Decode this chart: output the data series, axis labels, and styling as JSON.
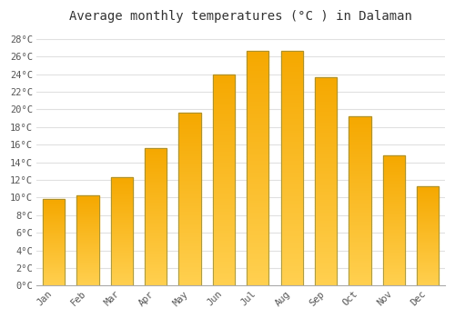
{
  "title": "Average monthly temperatures (°C ) in Dalaman",
  "months": [
    "Jan",
    "Feb",
    "Mar",
    "Apr",
    "May",
    "Jun",
    "Jul",
    "Aug",
    "Sep",
    "Oct",
    "Nov",
    "Dec"
  ],
  "temperatures": [
    9.8,
    10.3,
    12.3,
    15.6,
    19.6,
    24.0,
    26.7,
    26.6,
    23.7,
    19.2,
    14.8,
    11.3
  ],
  "bar_color_top": "#F5A800",
  "bar_color_bottom": "#FFD050",
  "bar_edge_color": "#888844",
  "ylim": [
    0,
    29
  ],
  "yticks": [
    0,
    2,
    4,
    6,
    8,
    10,
    12,
    14,
    16,
    18,
    20,
    22,
    24,
    26,
    28
  ],
  "ytick_labels": [
    "0°C",
    "2°C",
    "4°C",
    "6°C",
    "8°C",
    "10°C",
    "12°C",
    "14°C",
    "16°C",
    "18°C",
    "20°C",
    "22°C",
    "24°C",
    "26°C",
    "28°C"
  ],
  "background_color": "#ffffff",
  "grid_color": "#e0e0e0",
  "title_fontsize": 10,
  "tick_fontsize": 7.5,
  "font_family": "monospace",
  "bar_width": 0.65
}
